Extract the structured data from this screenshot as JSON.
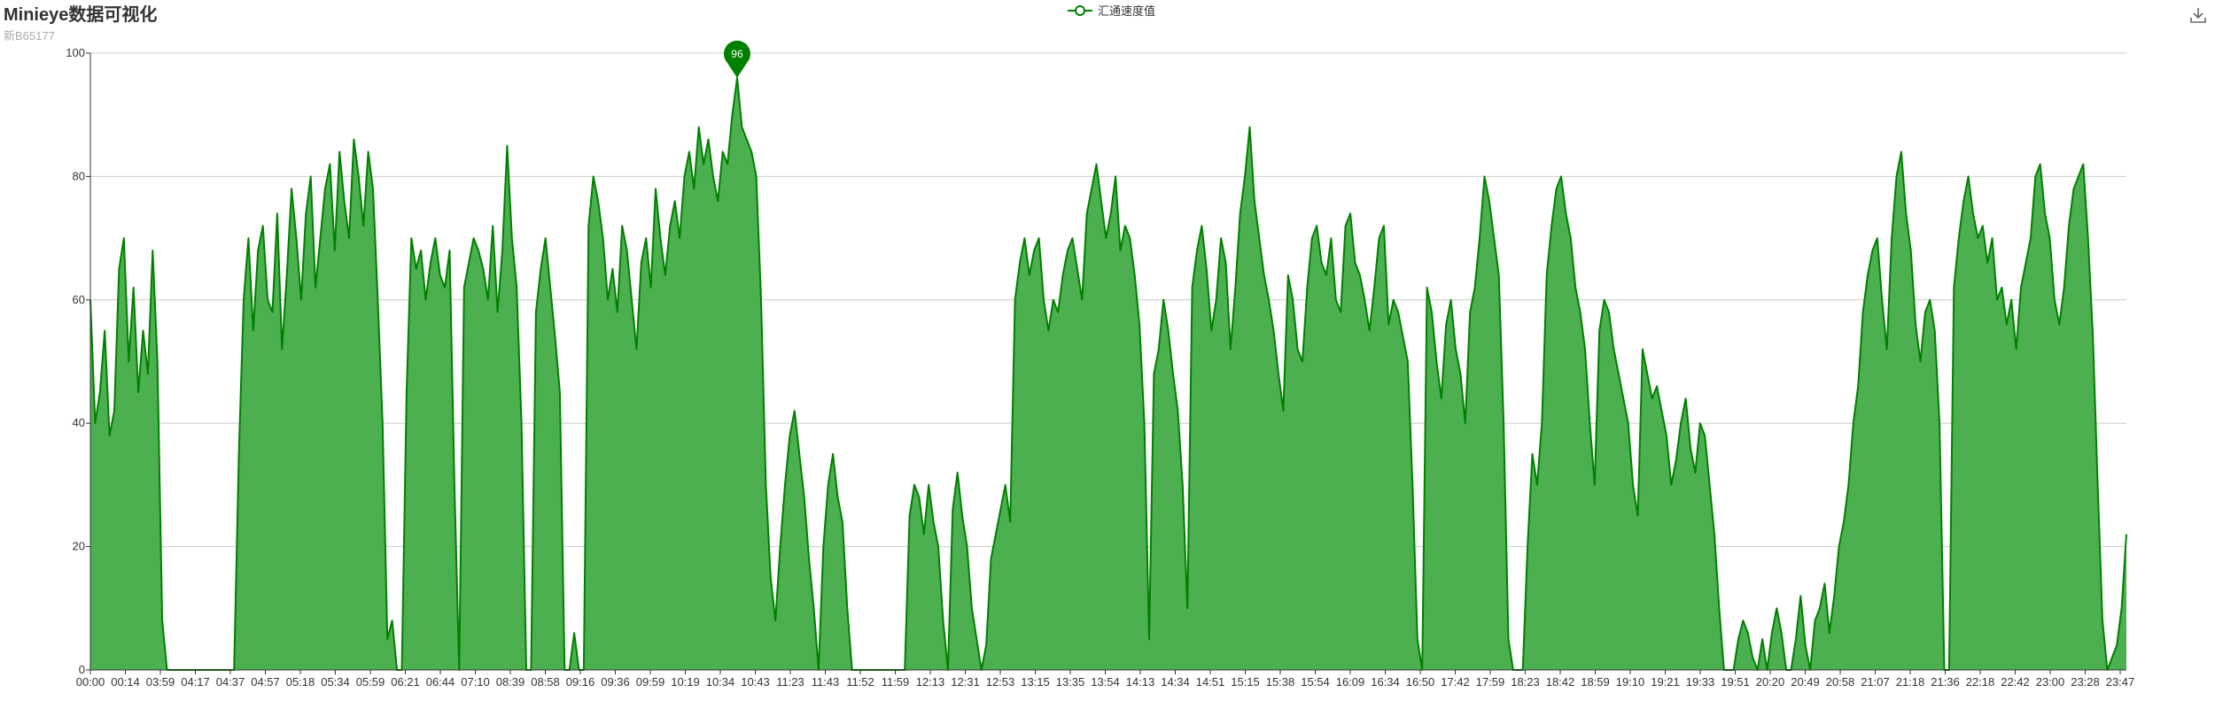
{
  "header": {
    "title": "Minieye数据可视化",
    "subtitle": "新B65177"
  },
  "legend": {
    "label": "汇通速度值",
    "icon": "line-circle-icon"
  },
  "toolbox": {
    "download_icon": "download-icon"
  },
  "colors": {
    "series": "#008000",
    "area": "#4caf50",
    "grid": "#cccccc",
    "axis": "#333333"
  },
  "chart_data": {
    "type": "area",
    "title": "Minieye数据可视化",
    "subtitle": "新B65177",
    "xlabel": "",
    "ylabel": "",
    "ylim": [
      0,
      100
    ],
    "yticks": [
      0,
      20,
      40,
      60,
      80,
      100
    ],
    "grid": true,
    "legend_position": "top-center",
    "x_ticks": [
      "00:00",
      "00:14",
      "03:59",
      "04:17",
      "04:37",
      "04:57",
      "05:18",
      "05:34",
      "05:59",
      "06:21",
      "06:44",
      "07:10",
      "08:39",
      "08:58",
      "09:16",
      "09:36",
      "09:59",
      "10:19",
      "10:34",
      "10:43",
      "11:23",
      "11:43",
      "11:52",
      "11:59",
      "12:13",
      "12:31",
      "12:53",
      "13:15",
      "13:35",
      "13:54",
      "14:13",
      "14:34",
      "14:51",
      "15:15",
      "15:38",
      "15:54",
      "16:09",
      "16:34",
      "16:50",
      "17:42",
      "17:59",
      "18:23",
      "18:42",
      "18:59",
      "19:10",
      "19:21",
      "19:33",
      "19:51",
      "20:20",
      "20:49",
      "20:58",
      "21:07",
      "21:18",
      "21:36",
      "22:18",
      "22:42",
      "23:00",
      "23:28",
      "23:47"
    ],
    "series": [
      {
        "name": "汇通速度值",
        "mark_point": {
          "label": "96",
          "value": 96,
          "x": "10:19"
        },
        "values": [
          60,
          40,
          45,
          55,
          38,
          42,
          65,
          70,
          50,
          62,
          45,
          55,
          48,
          68,
          50,
          8,
          0,
          0,
          0,
          0,
          0,
          0,
          0,
          0,
          0,
          0,
          0,
          0,
          0,
          0,
          0,
          35,
          60,
          70,
          55,
          68,
          72,
          60,
          58,
          74,
          52,
          64,
          78,
          70,
          60,
          74,
          80,
          62,
          70,
          78,
          82,
          68,
          84,
          76,
          70,
          86,
          80,
          72,
          84,
          78,
          60,
          40,
          5,
          8,
          0,
          0,
          45,
          70,
          65,
          68,
          60,
          66,
          70,
          64,
          62,
          68,
          30,
          0,
          62,
          66,
          70,
          68,
          65,
          60,
          72,
          58,
          68,
          85,
          70,
          62,
          40,
          0,
          0,
          58,
          65,
          70,
          62,
          54,
          45,
          0,
          0,
          6,
          0,
          0,
          72,
          80,
          76,
          70,
          60,
          65,
          58,
          72,
          68,
          60,
          52,
          66,
          70,
          62,
          78,
          70,
          64,
          72,
          76,
          70,
          80,
          84,
          78,
          88,
          82,
          86,
          80,
          76,
          84,
          82,
          90,
          96,
          88,
          86,
          84,
          80,
          60,
          30,
          15,
          8,
          20,
          30,
          38,
          42,
          35,
          28,
          18,
          10,
          0,
          20,
          30,
          35,
          28,
          24,
          10,
          0,
          0,
          0,
          0,
          0,
          0,
          0,
          0,
          0,
          0,
          0,
          0,
          25,
          30,
          28,
          22,
          30,
          24,
          20,
          8,
          0,
          26,
          32,
          25,
          20,
          10,
          5,
          0,
          4,
          18,
          22,
          26,
          30,
          24,
          60,
          66,
          70,
          64,
          68,
          70,
          60,
          55,
          60,
          58,
          64,
          68,
          70,
          65,
          60,
          74,
          78,
          82,
          76,
          70,
          74,
          80,
          68,
          72,
          70,
          64,
          56,
          40,
          5,
          48,
          52,
          60,
          55,
          48,
          42,
          30,
          10,
          62,
          68,
          72,
          65,
          55,
          60,
          70,
          66,
          52,
          62,
          74,
          80,
          88,
          76,
          70,
          64,
          60,
          55,
          48,
          42,
          64,
          60,
          52,
          50,
          62,
          70,
          72,
          66,
          64,
          70,
          60,
          58,
          72,
          74,
          66,
          64,
          60,
          55,
          62,
          70,
          72,
          56,
          60,
          58,
          54,
          50,
          30,
          5,
          0,
          62,
          58,
          50,
          44,
          56,
          60,
          52,
          48,
          40,
          58,
          62,
          70,
          80,
          76,
          70,
          64,
          40,
          5,
          0,
          0,
          0,
          20,
          35,
          30,
          40,
          64,
          72,
          78,
          80,
          74,
          70,
          62,
          58,
          52,
          40,
          30,
          55,
          60,
          58,
          52,
          48,
          44,
          40,
          30,
          25,
          52,
          48,
          44,
          46,
          42,
          38,
          30,
          34,
          40,
          44,
          36,
          32,
          40,
          38,
          30,
          22,
          10,
          0,
          0,
          0,
          5,
          8,
          6,
          2,
          0,
          5,
          0,
          6,
          10,
          6,
          0,
          0,
          5,
          12,
          4,
          0,
          8,
          10,
          14,
          6,
          12,
          20,
          24,
          30,
          40,
          46,
          58,
          64,
          68,
          70,
          60,
          52,
          70,
          80,
          84,
          74,
          68,
          56,
          50,
          58,
          60,
          55,
          40,
          0,
          0,
          62,
          70,
          76,
          80,
          74,
          70,
          72,
          66,
          70,
          60,
          62,
          56,
          60,
          52,
          62,
          66,
          70,
          80,
          82,
          74,
          70,
          60,
          56,
          62,
          72,
          78,
          80,
          82,
          70,
          54,
          30,
          8,
          0,
          2,
          4,
          10,
          22
        ]
      }
    ]
  }
}
